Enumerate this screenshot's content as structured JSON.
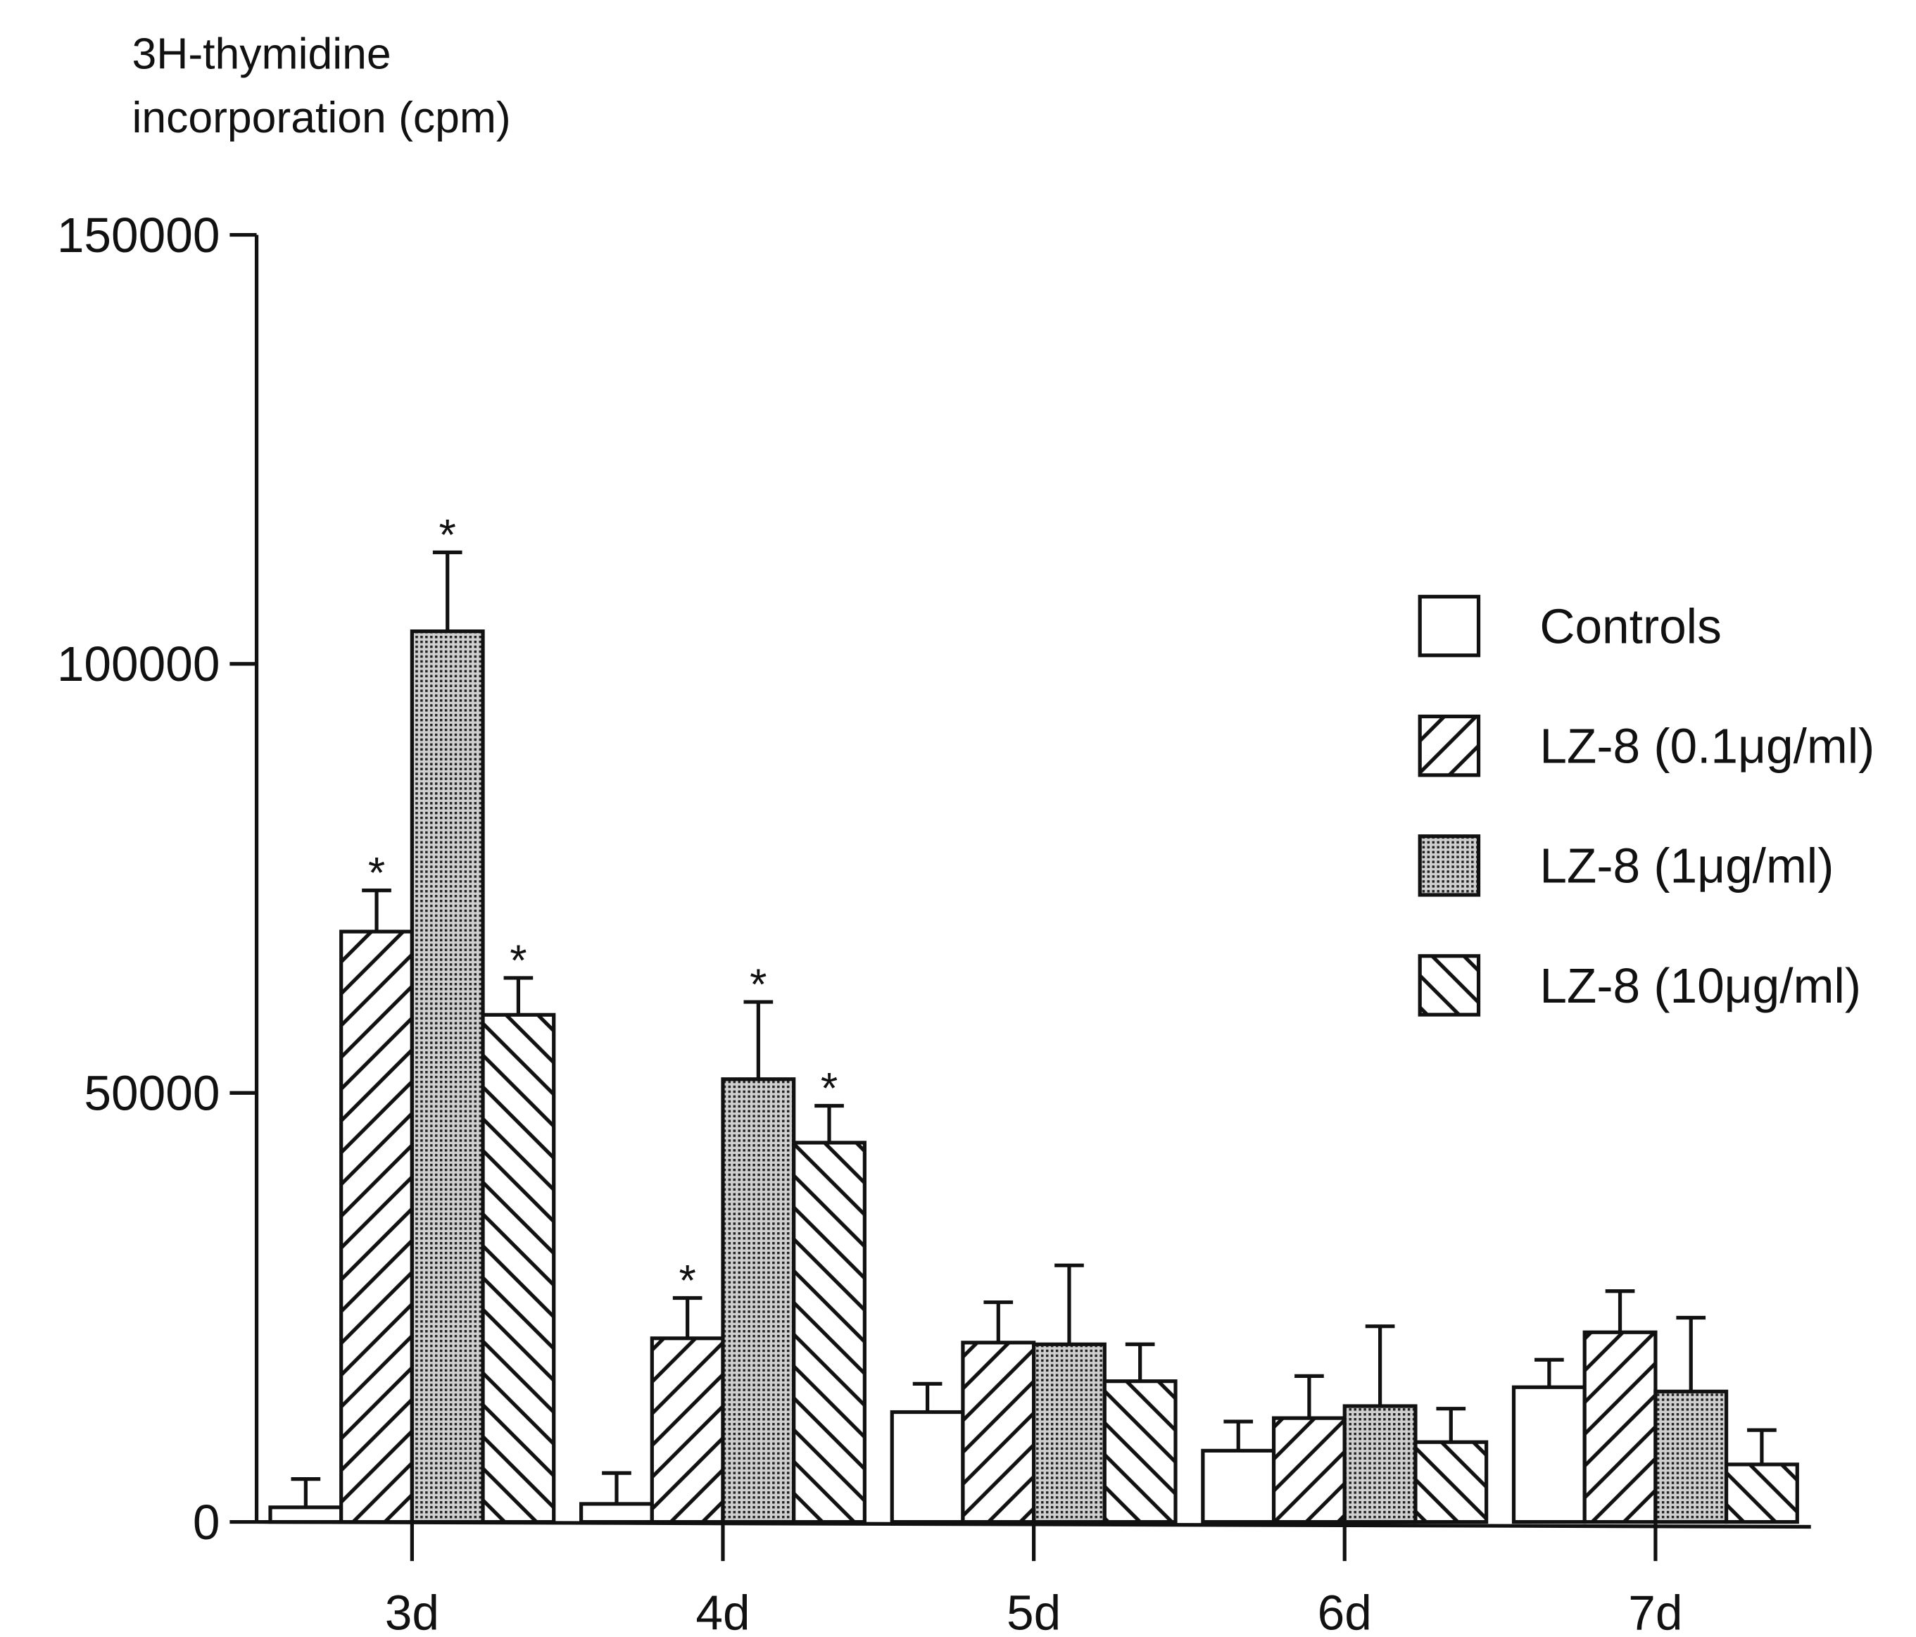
{
  "chart_data": {
    "type": "bar",
    "ylabel": [
      "3H-thymidine",
      "incorporation (cpm)"
    ],
    "categories": [
      "3d",
      "4d",
      "5d",
      "6d",
      "7d"
    ],
    "ylim": [
      0,
      150000
    ],
    "yticks": [
      0,
      50000,
      100000,
      150000
    ],
    "legend": "right",
    "series": [
      {
        "name": "Controls",
        "color": "#ffffff",
        "pattern": "none",
        "values": [
          1700,
          2100,
          12800,
          8300,
          15700
        ],
        "errors": [
          3300,
          3600,
          3300,
          3400,
          3200
        ]
      },
      {
        "name": "LZ-8 (0.1μg/ml)",
        "color": "#ffffff",
        "pattern": "diagonal-up",
        "values": [
          68800,
          21400,
          20900,
          12100,
          22100
        ],
        "errors": [
          4800,
          4700,
          4700,
          4900,
          4800
        ]
      },
      {
        "name": "LZ-8 (1μg/ml)",
        "color": "#ffffff",
        "pattern": "dots",
        "values": [
          103800,
          51600,
          20700,
          13500,
          15200
        ],
        "errors": [
          9200,
          9000,
          9200,
          9300,
          8600
        ]
      },
      {
        "name": "LZ-8 (10μg/ml)",
        "color": "#ffffff",
        "pattern": "diagonal-down",
        "values": [
          59100,
          44200,
          16400,
          9300,
          6700
        ],
        "errors": [
          4300,
          4300,
          4300,
          3900,
          4000
        ]
      }
    ],
    "annotations": [
      {
        "text": "*",
        "series": 1,
        "category": 0
      },
      {
        "text": "*",
        "series": 2,
        "category": 0
      },
      {
        "text": "*",
        "series": 3,
        "category": 0
      },
      {
        "text": "*",
        "series": 1,
        "category": 1
      },
      {
        "text": "*",
        "series": 2,
        "category": 1
      },
      {
        "text": "*",
        "series": 3,
        "category": 1
      }
    ]
  }
}
